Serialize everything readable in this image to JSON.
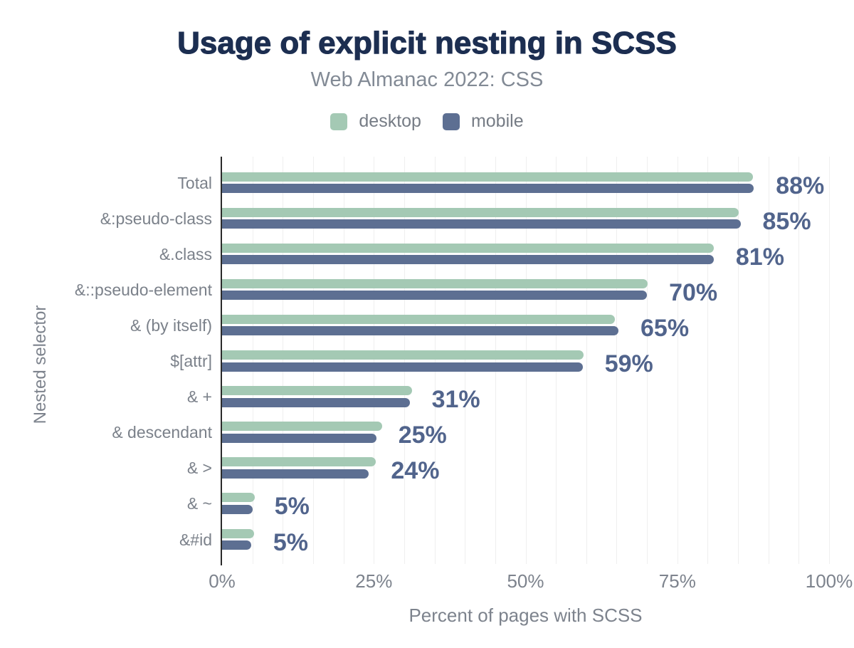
{
  "title": "Usage of explicit nesting in SCSS",
  "subtitle": "Web Almanac 2022: CSS",
  "legend": {
    "items": [
      {
        "label": "desktop"
      },
      {
        "label": "mobile"
      }
    ]
  },
  "colors": {
    "desktop": "#a4c9b4",
    "mobile": "#5d6f92",
    "title": "#1c2e51",
    "subtitle": "#828a95",
    "axis_text": "#7d838d",
    "value_label": "#51648c",
    "gridline": "#efefef",
    "axis_line": "#2a2a2a"
  },
  "chart_data": {
    "type": "bar",
    "orientation": "horizontal",
    "title": "Usage of explicit nesting in SCSS",
    "subtitle": "Web Almanac 2022: CSS",
    "xlabel": "Percent of pages with SCSS",
    "ylabel": "Nested selector",
    "xlim": [
      0,
      100
    ],
    "xticks": [
      0,
      25,
      50,
      75,
      100
    ],
    "xtick_labels": [
      "0%",
      "25%",
      "50%",
      "75%",
      "100%"
    ],
    "grid_interval": 5,
    "legend_position": "top",
    "categories": [
      "Total",
      "&:pseudo-class",
      "&.class",
      "&::pseudo-element",
      "& (by itself)",
      "$[attr]",
      "& +",
      "& descendant",
      "& >",
      "& ~",
      "&#id"
    ],
    "series": [
      {
        "name": "desktop",
        "values": [
          87.5,
          85.1,
          81.0,
          70.1,
          64.7,
          59.6,
          31.3,
          26.4,
          25.3,
          5.4,
          5.3
        ]
      },
      {
        "name": "mobile",
        "values": [
          87.6,
          85.4,
          81.0,
          70.0,
          65.3,
          59.4,
          30.9,
          25.4,
          24.2,
          5.0,
          4.8
        ]
      }
    ],
    "value_labels": [
      "88%",
      "85%",
      "81%",
      "70%",
      "65%",
      "59%",
      "31%",
      "25%",
      "24%",
      "5%",
      "5%"
    ],
    "value_labels_series": "mobile"
  }
}
